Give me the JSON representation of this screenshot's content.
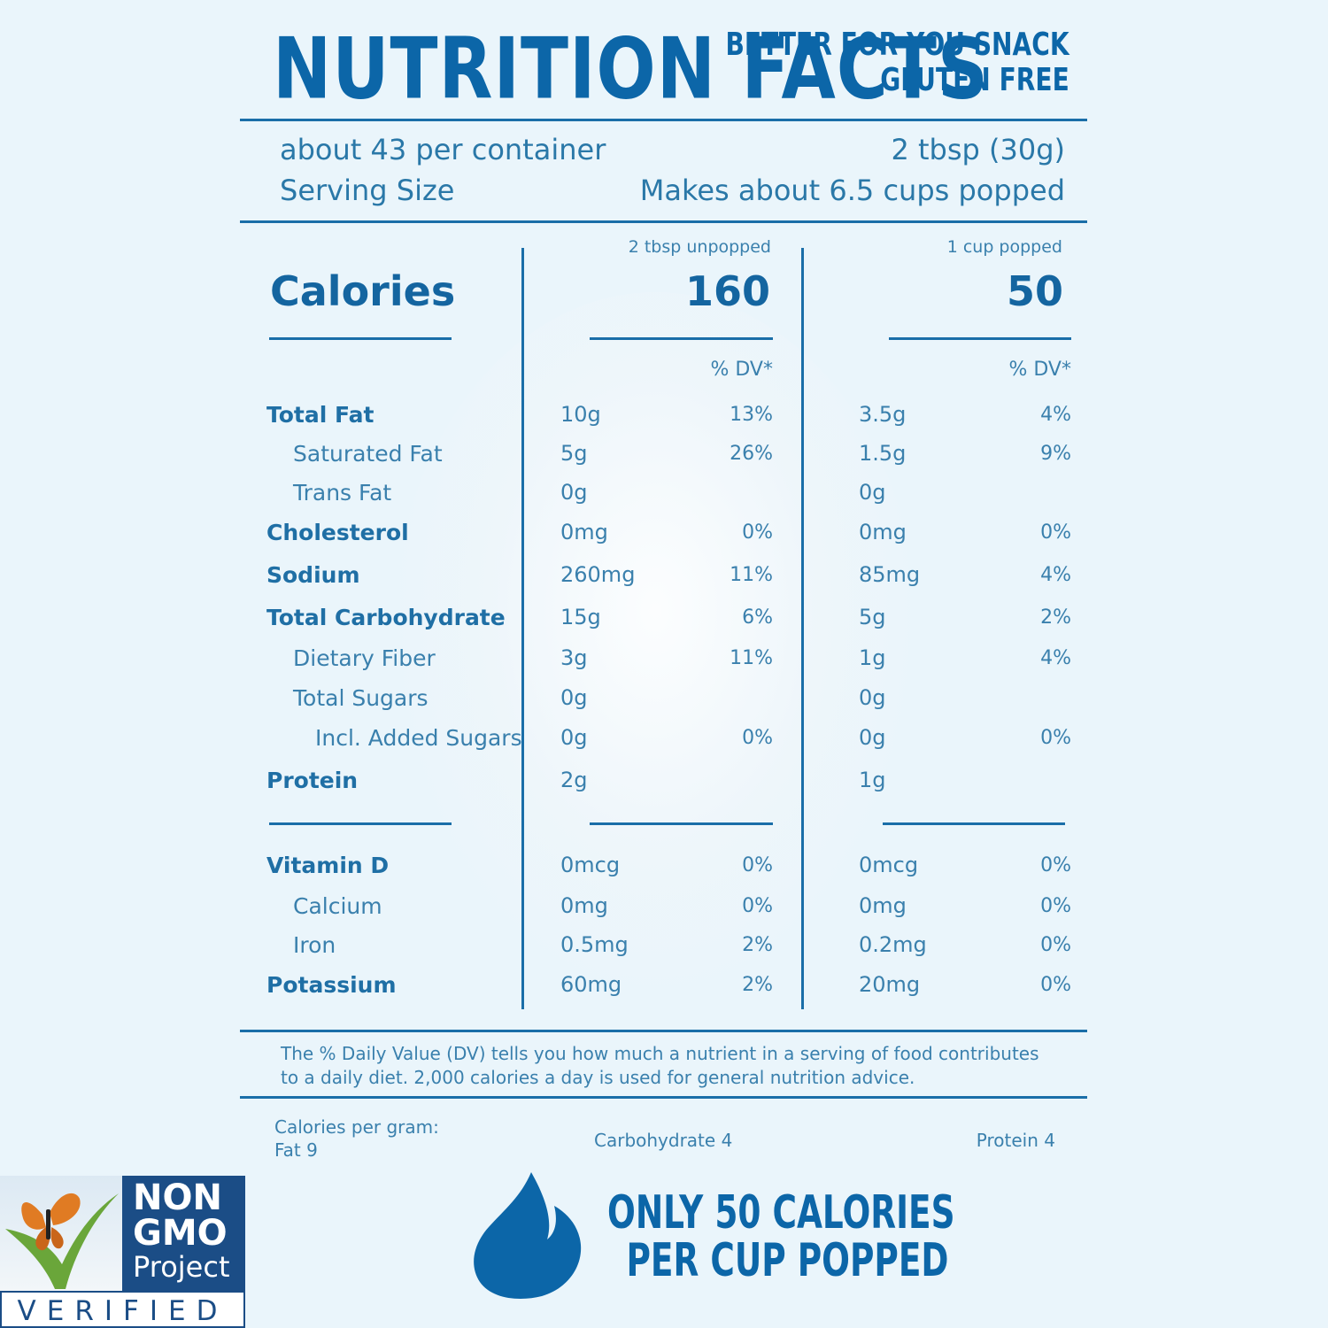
{
  "header": {
    "title": "NUTRITION FACTS",
    "tagline_1": "BETTER FOR YOU SNACK",
    "tagline_2": "GLUTEN FREE"
  },
  "serving": {
    "per_container": "about 43 per container",
    "size_label": "Serving Size",
    "amount": "2 tbsp (30g)",
    "popped": "Makes about 6.5 cups popped"
  },
  "columns": [
    {
      "header": "2 tbsp unpopped",
      "calories": "160",
      "dv_header": "% DV*"
    },
    {
      "header": "1 cup popped",
      "calories": "50",
      "dv_header": "% DV*"
    }
  ],
  "calories_label": "Calories",
  "nutrients": [
    {
      "label": "Total Fat",
      "bold": true,
      "indent": 0,
      "a": "10g",
      "a_dv": "13%",
      "b": "3.5g",
      "b_dv": "4%"
    },
    {
      "label": "Saturated Fat",
      "bold": false,
      "indent": 1,
      "a": "5g",
      "a_dv": "26%",
      "b": "1.5g",
      "b_dv": "9%"
    },
    {
      "label": "Trans Fat",
      "bold": false,
      "indent": 1,
      "a": "0g",
      "a_dv": "",
      "b": "0g",
      "b_dv": ""
    },
    {
      "label": "Cholesterol",
      "bold": true,
      "indent": 0,
      "a": "0mg",
      "a_dv": "0%",
      "b": "0mg",
      "b_dv": "0%"
    },
    {
      "label": "Sodium",
      "bold": true,
      "indent": 0,
      "a": "260mg",
      "a_dv": "11%",
      "b": "85mg",
      "b_dv": "4%"
    },
    {
      "label": "Total Carbohydrate",
      "bold": true,
      "indent": 0,
      "a": "15g",
      "a_dv": "6%",
      "b": "5g",
      "b_dv": "2%"
    },
    {
      "label": "Dietary Fiber",
      "bold": false,
      "indent": 1,
      "a": "3g",
      "a_dv": "11%",
      "b": "1g",
      "b_dv": "4%"
    },
    {
      "label": "Total Sugars",
      "bold": false,
      "indent": 1,
      "a": "0g",
      "a_dv": "",
      "b": "0g",
      "b_dv": ""
    },
    {
      "label": "Incl. Added Sugars",
      "bold": false,
      "indent": 2,
      "a": "0g",
      "a_dv": "0%",
      "b": "0g",
      "b_dv": "0%"
    },
    {
      "label": "Protein",
      "bold": true,
      "indent": 0,
      "a": "2g",
      "a_dv": "",
      "b": "1g",
      "b_dv": ""
    }
  ],
  "vitamins": [
    {
      "label": "Vitamin D",
      "bold": true,
      "indent": 0,
      "a": "0mcg",
      "a_dv": "0%",
      "b": "0mcg",
      "b_dv": "0%"
    },
    {
      "label": "Calcium",
      "bold": false,
      "indent": 1,
      "a": "0mg",
      "a_dv": "0%",
      "b": "0mg",
      "b_dv": "0%"
    },
    {
      "label": "Iron",
      "bold": false,
      "indent": 1,
      "a": "0.5mg",
      "a_dv": "2%",
      "b": "0.2mg",
      "b_dv": "0%"
    },
    {
      "label": "Potassium",
      "bold": true,
      "indent": 0,
      "a": "60mg",
      "a_dv": "2%",
      "b": "20mg",
      "b_dv": "0%"
    }
  ],
  "footnote": "The % Daily Value (DV) tells you how much a nutrient in a serving of food contributes to a daily diet. 2,000 calories a day is used for general nutrition advice.",
  "calories_per_gram": {
    "label": "Calories per gram:",
    "fat": "Fat 9",
    "carbohydrate": "Carbohydrate 4",
    "protein": "Protein 4"
  },
  "promo": {
    "line_1": "ONLY 50 CALORIES",
    "line_2": "PER CUP POPPED",
    "icon": "flame-icon"
  },
  "badge": {
    "line_1": "NON",
    "line_2": "GMO",
    "line_3": "Project",
    "line_4": "VERIFIED",
    "icon": "butterfly-icon"
  },
  "colors": {
    "brand_blue": "#0c66a8",
    "text_blue": "#3a80ad",
    "background": "#eaf5fb",
    "badge_navy": "#1b4d86"
  }
}
